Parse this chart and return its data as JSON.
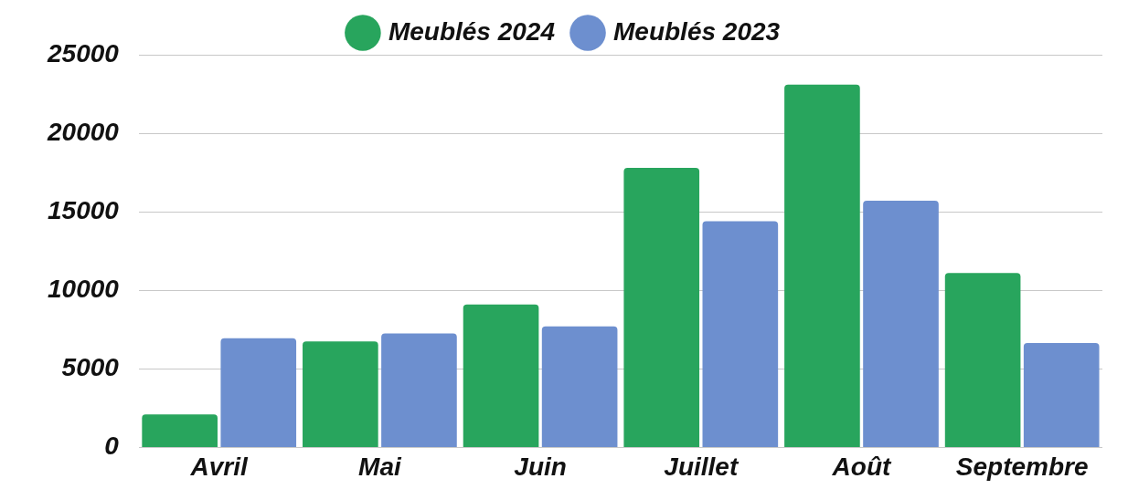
{
  "chart_data": {
    "type": "bar",
    "categories": [
      "Avril",
      "Mai",
      "Juin",
      "Juillet",
      "Août",
      "Septembre"
    ],
    "series": [
      {
        "name": "Meublés 2024",
        "color": "#28a55d",
        "values": [
          2100,
          6750,
          9100,
          17800,
          23100,
          11100
        ]
      },
      {
        "name": "Meublés 2023",
        "color": "#6d8fcf",
        "values": [
          6950,
          7250,
          7700,
          14400,
          15700,
          6650
        ]
      }
    ],
    "ylim": [
      0,
      25000
    ],
    "yticks": [
      0,
      5000,
      10000,
      15000,
      20000,
      25000
    ],
    "grid": "y",
    "legend": "top"
  }
}
